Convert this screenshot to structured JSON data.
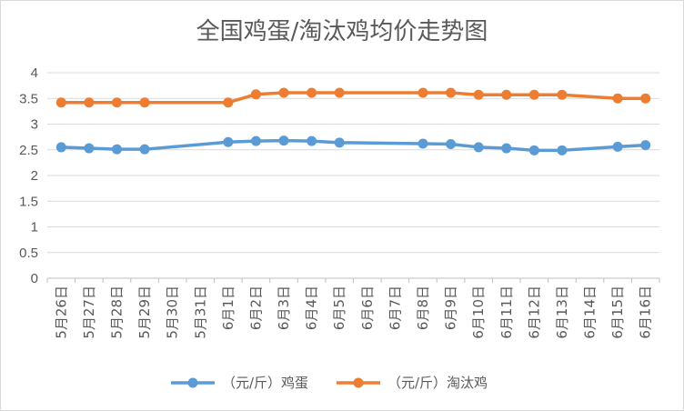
{
  "chart_data": {
    "type": "line",
    "title": "全国鸡蛋/淘汰鸡均价走势图",
    "categories": [
      "5月26日",
      "5月27日",
      "5月28日",
      "5月29日",
      "5月30日",
      "5月31日",
      "6月1日",
      "6月2日",
      "6月3日",
      "6月4日",
      "6月5日",
      "6月6日",
      "6月7日",
      "6月8日",
      "6月9日",
      "6月10日",
      "6月11日",
      "6月12日",
      "6月13日",
      "6月14日",
      "6月15日",
      "6月16日"
    ],
    "y_ticks": [
      "0",
      "0.5",
      "1",
      "1.5",
      "2",
      "2.5",
      "3",
      "3.5",
      "4"
    ],
    "ylim": [
      0,
      4
    ],
    "grid": true,
    "legend_position": "bottom",
    "series": [
      {
        "name": "（元/斤）鸡蛋",
        "color": "#5b9bd5",
        "values": [
          2.55,
          2.53,
          2.51,
          2.51,
          null,
          null,
          2.65,
          2.67,
          2.68,
          2.67,
          2.64,
          null,
          null,
          2.62,
          2.61,
          2.55,
          2.53,
          2.49,
          2.49,
          null,
          2.56,
          2.59
        ]
      },
      {
        "name": "（元/斤）淘汰鸡",
        "color": "#ed7d31",
        "values": [
          3.42,
          3.42,
          3.42,
          3.42,
          null,
          null,
          3.42,
          3.58,
          3.61,
          3.61,
          3.61,
          null,
          null,
          3.61,
          3.61,
          3.57,
          3.57,
          3.57,
          3.57,
          null,
          3.5,
          3.5
        ]
      }
    ]
  }
}
